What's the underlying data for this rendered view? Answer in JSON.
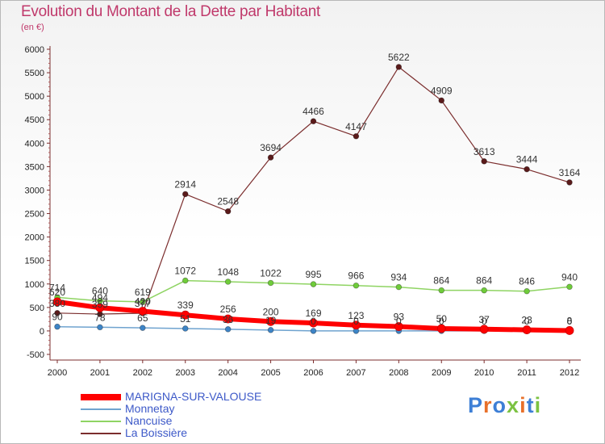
{
  "header": {
    "title": "Evolution du Montant de la Dette par Habitant",
    "subtitle": "(en €)"
  },
  "logo": {
    "text": "Proxiti",
    "colors": [
      "#3d7fd6",
      "#e8702a",
      "#3d7fd6",
      "#7cc242",
      "#e8702a",
      "#3d7fd6",
      "#7cc242"
    ]
  },
  "chart_data": {
    "type": "line",
    "categories": [
      "2000",
      "2001",
      "2002",
      "2003",
      "2004",
      "2005",
      "2006",
      "2007",
      "2008",
      "2009",
      "2010",
      "2011",
      "2012"
    ],
    "ylim": [
      -500,
      6000
    ],
    "yticks": [
      "-500",
      "0",
      "500",
      "1000",
      "1500",
      "2000",
      "2500",
      "3000",
      "3500",
      "4000",
      "4500",
      "5000",
      "5500",
      "6000"
    ],
    "grid": false,
    "legend_position": "bottom-left",
    "series": [
      {
        "name": "MARIGNA-SUR-VALOUSE",
        "color": "#ff0000",
        "marker": "#ff0000",
        "width": 6,
        "values": [
          620,
          494,
          420,
          339,
          256,
          200,
          169,
          123,
          93,
          50,
          37,
          23,
          8
        ],
        "labels": [
          "620",
          "494",
          "420",
          "339",
          "256",
          "200",
          "169",
          "123",
          "93",
          "50",
          "37",
          "23",
          "8"
        ]
      },
      {
        "name": "Monnetay",
        "color": "#6fa3cf",
        "marker": "#3d84c6",
        "width": 1.5,
        "values": [
          90,
          78,
          65,
          51,
          36,
          19,
          0,
          0,
          0,
          0,
          0,
          0,
          0
        ],
        "labels": [
          "90",
          "78",
          "65",
          "51",
          "36",
          "19",
          "0",
          "0",
          "0",
          "0",
          "0",
          "0",
          "0"
        ]
      },
      {
        "name": "Nancuise",
        "color": "#8fd463",
        "marker": "#6fcc3a",
        "width": 1.5,
        "values": [
          714,
          640,
          619,
          1072,
          1048,
          1022,
          995,
          966,
          934,
          864,
          864,
          846,
          940
        ],
        "labels": [
          "714",
          "640",
          "619",
          "1072",
          "1048",
          "1022",
          "995",
          "966",
          "934",
          "864",
          "864",
          "846",
          "940"
        ]
      },
      {
        "name": "La Boissière",
        "color": "#7b2d2d",
        "marker": "#5a1a1a",
        "width": 1.2,
        "values": [
          380,
          359,
          377,
          2914,
          2548,
          3694,
          4466,
          4147,
          5622,
          4909,
          3613,
          3444,
          3164
        ],
        "labels": [
          "380",
          "359",
          "377",
          "2914",
          "2548",
          "3694",
          "4466",
          "4147",
          "5622",
          "4909",
          "3613",
          "3444",
          "3164"
        ]
      }
    ]
  }
}
